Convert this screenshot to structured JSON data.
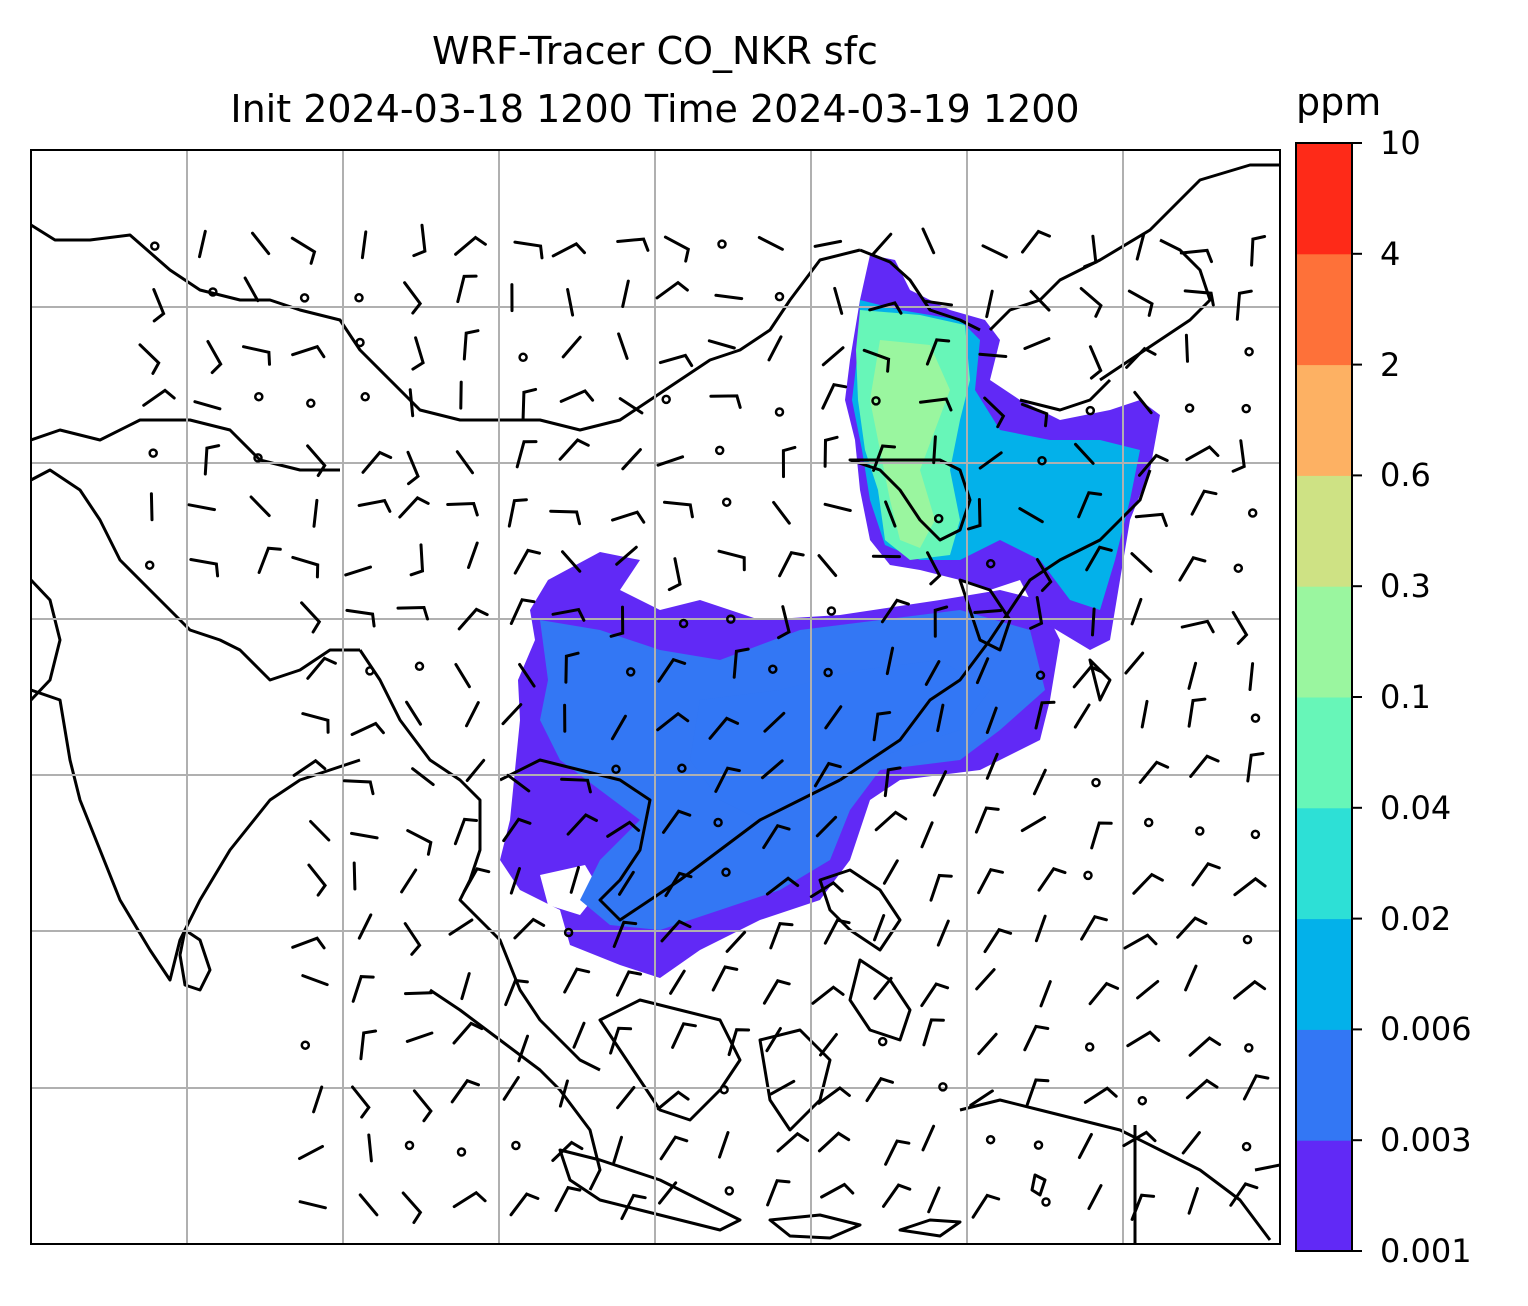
{
  "title": {
    "line1": "WRF-Tracer CO_NKR sfc",
    "line2": "Init 2024-03-18 1200 Time 2024-03-19 1200"
  },
  "colorbar": {
    "unit": "ppm",
    "levels": [
      "0.001",
      "0.003",
      "0.006",
      "0.02",
      "0.04",
      "0.1",
      "0.3",
      "0.6",
      "2",
      "4",
      "10"
    ],
    "colors": [
      "#6129f6",
      "#3377f4",
      "#03b1ea",
      "#2de0d6",
      "#67f6b8",
      "#9af69f",
      "#cee284",
      "#fdb163",
      "#fe7139",
      "#fe2a18"
    ]
  },
  "map": {
    "background": "#ffffff",
    "gridline_color": "#b0b0b0",
    "coastline_color": "#000000",
    "plume_regions": [
      {
        "name": "south-china-indochina-plume",
        "level_index": 0
      },
      {
        "name": "south-china-core",
        "level_index": 1
      },
      {
        "name": "northeast-china-plume",
        "level_index": 2
      },
      {
        "name": "northeast-china-high",
        "level_index": 4
      }
    ]
  }
}
